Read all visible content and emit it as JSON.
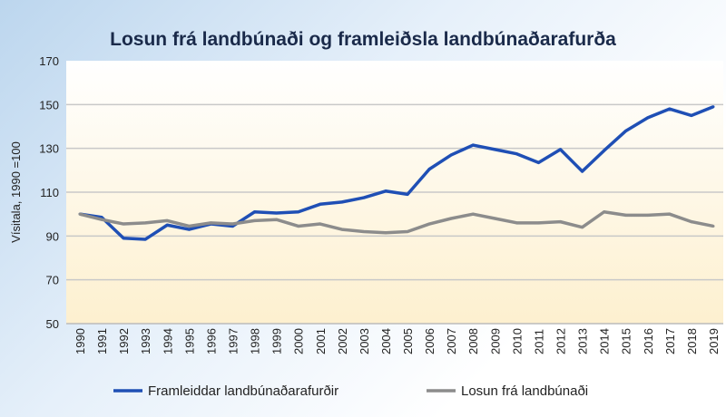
{
  "chart_data": {
    "type": "line",
    "title": "Losun frá landbúnaði og framleiðsla landbúnaðarafurða",
    "xlabel": "",
    "ylabel": "Vísitala, 1990 =100",
    "ylim": [
      50,
      170
    ],
    "yticks": [
      50,
      70,
      90,
      110,
      130,
      150,
      170
    ],
    "grid": true,
    "legend_position": "bottom",
    "categories": [
      "1990",
      "1991",
      "1992",
      "1993",
      "1994",
      "1995",
      "1996",
      "1997",
      "1998",
      "1999",
      "2000",
      "2001",
      "2002",
      "2003",
      "2004",
      "2005",
      "2006",
      "2007",
      "2008",
      "2009",
      "2010",
      "2011",
      "2012",
      "2013",
      "2014",
      "2015",
      "2016",
      "2017",
      "2018",
      "2019"
    ],
    "series": [
      {
        "name": "Framleiddar landbúnaðarafurðir",
        "color": "#1f4fb5",
        "values": [
          100,
          98.5,
          89,
          88.5,
          95,
          93,
          95.5,
          94.5,
          101,
          100.5,
          101,
          104.5,
          105.5,
          107.5,
          110.5,
          109,
          120.5,
          127,
          131.5,
          129.5,
          127.5,
          123.5,
          129.5,
          119.5,
          129,
          138,
          144,
          148,
          145,
          149
        ]
      },
      {
        "name": "Losun frá landbúnaði",
        "color": "#8c8c8c",
        "values": [
          100,
          97.5,
          95.5,
          96,
          97,
          94.5,
          96,
          95.5,
          97,
          97.5,
          94.5,
          95.5,
          93,
          92,
          91.5,
          92,
          95.5,
          98,
          100,
          98,
          96,
          96,
          96.5,
          94,
          101,
          99.5,
          99.5,
          100,
          96.5,
          94.5
        ]
      }
    ]
  }
}
